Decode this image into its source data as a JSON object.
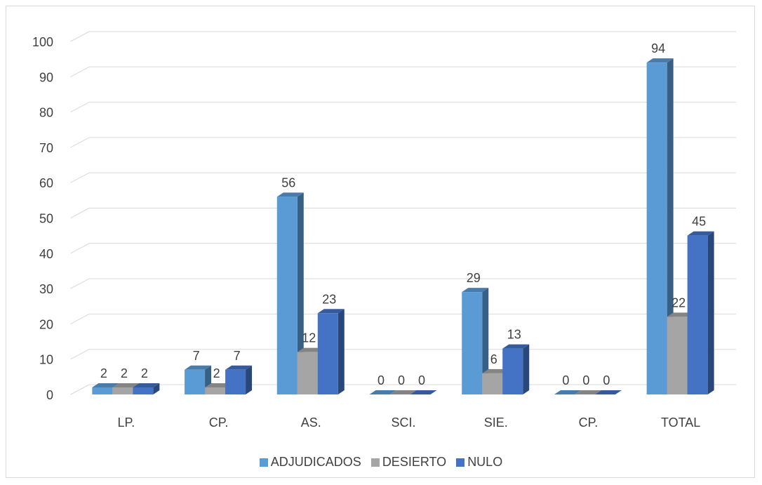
{
  "chart_data": {
    "type": "bar",
    "style": "3d-clustered-column",
    "categories": [
      "LP.",
      "CP.",
      "AS.",
      "SCI.",
      "SIE.",
      "CP.",
      "TOTAL"
    ],
    "series": [
      {
        "name": "ADJUDICADOS",
        "values": [
          2,
          7,
          56,
          0,
          29,
          0,
          94
        ],
        "color": "#5b9bd5"
      },
      {
        "name": "DESIERTO",
        "values": [
          2,
          2,
          12,
          0,
          6,
          0,
          22
        ],
        "color": "#a5a5a5"
      },
      {
        "name": "NULO",
        "values": [
          2,
          7,
          23,
          0,
          13,
          0,
          45
        ],
        "color": "#4472c4"
      }
    ],
    "yticks": [
      "0",
      "10",
      "20",
      "30",
      "40",
      "50",
      "60",
      "70",
      "80",
      "90",
      "100"
    ],
    "ylim": [
      0,
      100
    ],
    "grid": true,
    "legend_position": "bottom",
    "data_labels": true
  }
}
